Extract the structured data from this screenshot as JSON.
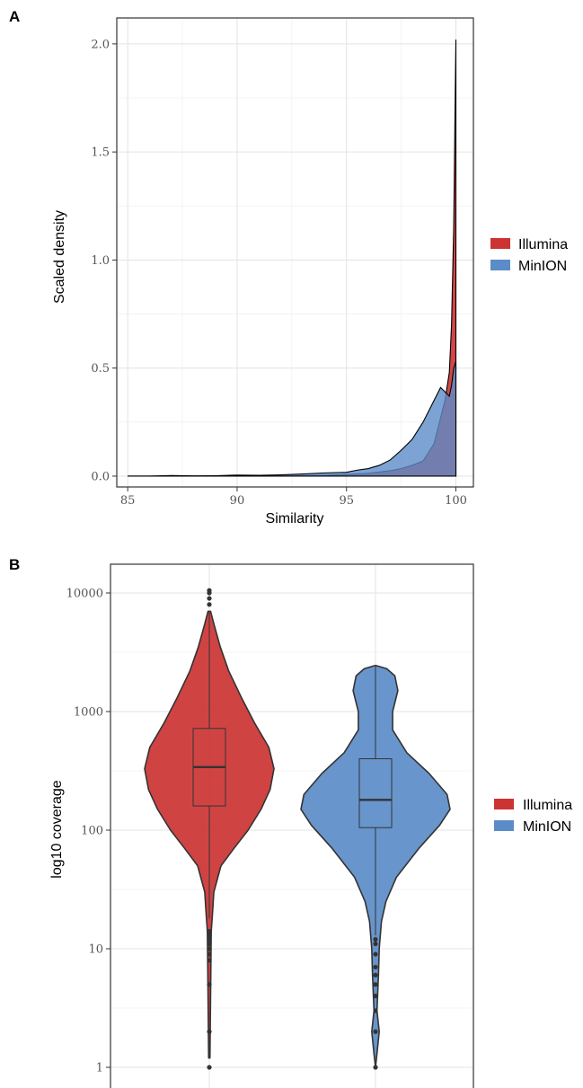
{
  "colors": {
    "illumina": "#cc3333",
    "minion": "#5b8cc8",
    "outline": "#333333"
  },
  "chart_data": [
    {
      "panel": "A",
      "type": "area",
      "xlabel": "Similarity",
      "ylabel": "Scaled density",
      "xlim": [
        84.5,
        100.8
      ],
      "ylim": [
        -0.05,
        2.12
      ],
      "xticks": [
        85,
        90,
        95,
        100
      ],
      "yticks": [
        0.0,
        0.5,
        1.0,
        1.5,
        2.0
      ],
      "xtick_labels": [
        "85",
        "90",
        "95",
        "100"
      ],
      "ytick_labels": [
        "0.0",
        "0.5",
        "1.0",
        "1.5",
        "2.0"
      ],
      "grid": true,
      "legend_position": "right",
      "series": [
        {
          "name": "Illumina",
          "x": [
            85,
            86,
            87,
            88,
            89,
            90,
            91,
            92,
            93,
            94,
            95,
            96,
            97,
            97.5,
            98,
            98.5,
            99,
            99.3,
            99.5,
            99.7,
            99.8,
            99.9,
            99.95,
            100
          ],
          "values": [
            0.0,
            0.0,
            0.0,
            0.0,
            0.0,
            0.0,
            0.0,
            0.0,
            0.002,
            0.004,
            0.008,
            0.013,
            0.025,
            0.035,
            0.05,
            0.07,
            0.15,
            0.27,
            0.35,
            0.48,
            0.7,
            1.15,
            1.6,
            2.02
          ]
        },
        {
          "name": "MinION",
          "x": [
            85,
            86,
            87,
            88,
            89,
            90,
            91,
            92,
            93,
            94,
            95,
            95.5,
            96,
            96.5,
            97,
            97.5,
            98,
            98.5,
            99,
            99.3,
            99.5,
            99.7,
            99.8,
            99.9,
            100
          ],
          "values": [
            0.0,
            0.0,
            0.003,
            0.001,
            0.002,
            0.005,
            0.004,
            0.006,
            0.01,
            0.015,
            0.018,
            0.028,
            0.035,
            0.05,
            0.075,
            0.12,
            0.17,
            0.25,
            0.35,
            0.41,
            0.39,
            0.37,
            0.42,
            0.5,
            0.53
          ]
        }
      ]
    },
    {
      "panel": "B",
      "type": "violin",
      "xlabel": "",
      "ylabel": "log10 coverage",
      "ylim": [
        1,
        10000
      ],
      "yscale": "log",
      "yticks": [
        1,
        10,
        100,
        1000,
        10000
      ],
      "ytick_labels": [
        "1",
        "10",
        "100",
        "1000",
        "10000"
      ],
      "grid": true,
      "legend_position": "right",
      "categories": [
        "Illumina",
        "MinION"
      ],
      "series": [
        {
          "name": "Illumina",
          "box": {
            "q1": 160,
            "median": 340,
            "q3": 720,
            "whisker_low": 18,
            "whisker_high": 7000
          },
          "outliers": [
            1,
            2,
            5,
            8,
            9,
            10,
            11,
            12,
            13,
            14,
            8000,
            9000,
            10000,
            10500
          ],
          "violin": [
            [
              1.2,
              0.01
            ],
            [
              14,
              0.03
            ],
            [
              20,
              0.05
            ],
            [
              30,
              0.07
            ],
            [
              50,
              0.18
            ],
            [
              70,
              0.38
            ],
            [
              100,
              0.6
            ],
            [
              150,
              0.8
            ],
            [
              220,
              0.94
            ],
            [
              330,
              1.0
            ],
            [
              500,
              0.92
            ],
            [
              800,
              0.7
            ],
            [
              1300,
              0.5
            ],
            [
              2200,
              0.3
            ],
            [
              3500,
              0.17
            ],
            [
              5500,
              0.07
            ],
            [
              7000,
              0.02
            ]
          ]
        },
        {
          "name": "MinION",
          "box": {
            "q1": 105,
            "median": 180,
            "q3": 400,
            "whisker_low": 13,
            "whisker_high": 2400
          },
          "outliers": [
            1,
            2,
            3,
            4,
            5,
            6,
            7,
            9,
            11,
            12
          ],
          "violin": [
            [
              1.0,
              0.0
            ],
            [
              1.3,
              0.02
            ],
            [
              2,
              0.05
            ],
            [
              3,
              0.02
            ],
            [
              6,
              0.04
            ],
            [
              10,
              0.05
            ],
            [
              17,
              0.08
            ],
            [
              25,
              0.14
            ],
            [
              40,
              0.28
            ],
            [
              70,
              0.58
            ],
            [
              110,
              0.86
            ],
            [
              150,
              1.0
            ],
            [
              200,
              0.96
            ],
            [
              300,
              0.72
            ],
            [
              450,
              0.42
            ],
            [
              700,
              0.23
            ],
            [
              1000,
              0.23
            ],
            [
              1500,
              0.3
            ],
            [
              2000,
              0.26
            ],
            [
              2300,
              0.15
            ],
            [
              2450,
              0.0
            ]
          ]
        }
      ]
    }
  ],
  "legend": {
    "items": [
      {
        "label": "Illumina"
      },
      {
        "label": "MinION"
      }
    ]
  },
  "panelA": {
    "letter": "A",
    "xlabel": "Similarity",
    "ylabel": "Scaled density"
  },
  "panelB": {
    "letter": "B",
    "ylabel": "log10 coverage"
  }
}
